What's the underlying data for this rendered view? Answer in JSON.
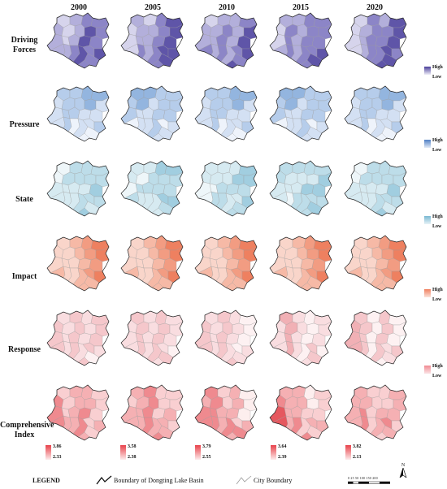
{
  "years": [
    "2000",
    "2005",
    "2010",
    "2015",
    "2020"
  ],
  "rows": [
    {
      "label_lines": [
        "Driving",
        "Forces"
      ],
      "palette": [
        "#f4f3fa",
        "#d6d4ec",
        "#b3afdb",
        "#8c85c7",
        "#5f55a8"
      ],
      "legend": {
        "high": "High",
        "low": "Low",
        "colors": [
          "#4a3f9a",
          "#eeedf7"
        ]
      }
    },
    {
      "label_lines": [
        "Pressure"
      ],
      "palette": [
        "#eef3fb",
        "#d3e0f3",
        "#b6cdeb",
        "#93b5df",
        "#6995cf"
      ],
      "legend": {
        "high": "High",
        "low": "Low",
        "colors": [
          "#4f7fc4",
          "#e3ebf7"
        ]
      }
    },
    {
      "label_lines": [
        "State"
      ],
      "palette": [
        "#eef6f9",
        "#d6eaf1",
        "#bddde9",
        "#a1cee0",
        "#84bed6"
      ],
      "legend": {
        "high": "High",
        "low": "Low",
        "colors": [
          "#7ab8d2",
          "#e8f3f7"
        ]
      }
    },
    {
      "label_lines": [
        "Impact"
      ],
      "palette": [
        "#fdf0ec",
        "#f9d5ca",
        "#f6b9a6",
        "#f29c82",
        "#ee8060"
      ],
      "legend": {
        "high": "High",
        "low": "Low",
        "colors": [
          "#f08060",
          "#fbe3da"
        ]
      }
    },
    {
      "label_lines": [
        "Response"
      ],
      "palette": [
        "#fdf1f2",
        "#f9dde0",
        "#f5c7cb",
        "#f1b0b5",
        "#eb9aa0"
      ],
      "legend": {
        "high": "High",
        "low": "Low",
        "colors": [
          "#f08a92",
          "#fbe3e5"
        ]
      }
    },
    {
      "label_lines": [
        "Comprehensive",
        "Index"
      ],
      "palette": [
        "#fdeeee",
        "#f9cfd1",
        "#f5b0b3",
        "#ef8a8f",
        "#e5585f"
      ],
      "legend_values": [
        {
          "high": "3.86",
          "low": "2.33"
        },
        {
          "high": "3.58",
          "low": "2.38"
        },
        {
          "high": "3.79",
          "low": "2.55"
        },
        {
          "high": "3.64",
          "low": "2.39"
        },
        {
          "high": "3.82",
          "low": "2.13"
        }
      ],
      "legend_colors": [
        "#e8424b",
        "#fdecec"
      ]
    }
  ],
  "footer": {
    "legend_title": "LEGEND",
    "basin_boundary": "Boundary of Dongting Lake Basin",
    "city_boundary": "City Boundary",
    "scale_text": "0 25 50 100 150 200",
    "north": "N"
  }
}
